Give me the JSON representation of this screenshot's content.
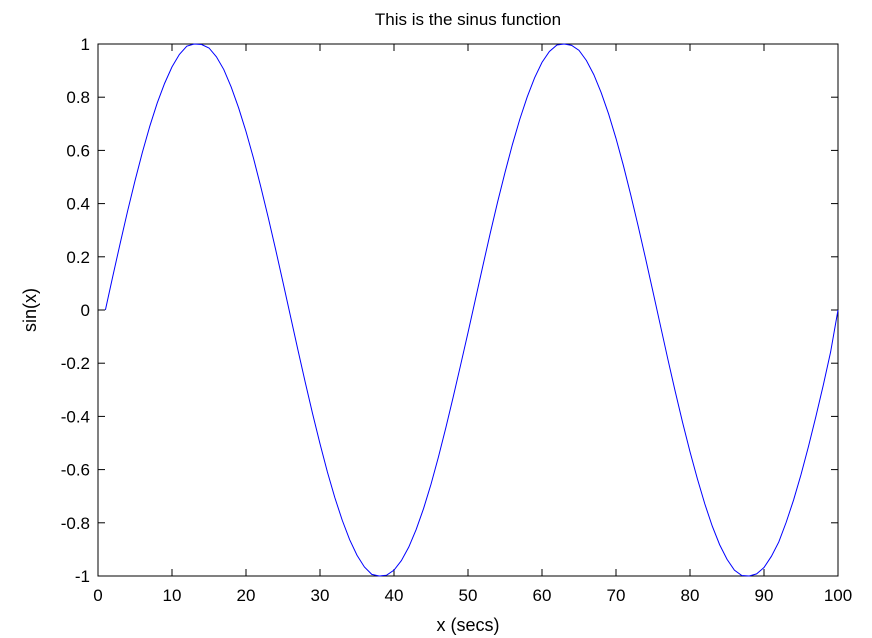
{
  "chart_data": {
    "type": "line",
    "title": "This is the sinus function",
    "xlabel": "x (secs)",
    "ylabel": "sin(x)",
    "xlim": [
      0,
      100
    ],
    "ylim": [
      -1,
      1
    ],
    "grid": false,
    "x_ticks": [
      0,
      10,
      20,
      30,
      40,
      50,
      60,
      70,
      80,
      90,
      100
    ],
    "x_tick_labels": [
      "0",
      "10",
      "20",
      "30",
      "40",
      "50",
      "60",
      "70",
      "80",
      "90",
      "100"
    ],
    "y_ticks": [
      -1,
      -0.8,
      -0.6,
      -0.4,
      -0.2,
      0,
      0.2,
      0.4,
      0.6,
      0.8,
      1
    ],
    "y_tick_labels": [
      "-1",
      "-0.8",
      "-0.6",
      "-0.4",
      "-0.2",
      "0",
      "0.2",
      "0.4",
      "0.6",
      "0.8",
      "1"
    ],
    "series": [
      {
        "color": "#0000ff",
        "x": [
          1,
          2,
          3,
          4,
          5,
          6,
          7,
          8,
          9,
          10,
          11,
          12,
          13,
          14,
          15,
          16,
          17,
          18,
          19,
          20,
          21,
          22,
          23,
          24,
          25,
          26,
          27,
          28,
          29,
          30,
          31,
          32,
          33,
          34,
          35,
          36,
          37,
          38,
          39,
          40,
          41,
          42,
          43,
          44,
          45,
          46,
          47,
          48,
          49,
          50,
          51,
          52,
          53,
          54,
          55,
          56,
          57,
          58,
          59,
          60,
          61,
          62,
          63,
          64,
          65,
          66,
          67,
          68,
          69,
          70,
          71,
          72,
          73,
          74,
          75,
          76,
          77,
          78,
          79,
          80,
          81,
          82,
          83,
          84,
          85,
          86,
          87,
          88,
          89,
          90,
          91,
          92,
          93,
          94,
          95,
          96,
          97,
          98,
          99,
          100
        ],
        "y": [
          0,
          0.127,
          0.251,
          0.372,
          0.486,
          0.593,
          0.691,
          0.778,
          0.852,
          0.914,
          0.961,
          0.992,
          1.0,
          0.998,
          0.985,
          0.952,
          0.904,
          0.838,
          0.76,
          0.671,
          0.572,
          0.463,
          0.348,
          0.228,
          0.104,
          -0.022,
          -0.148,
          -0.271,
          -0.39,
          -0.503,
          -0.609,
          -0.705,
          -0.79,
          -0.863,
          -0.922,
          -0.966,
          -0.994,
          -1.0,
          -0.997,
          -0.978,
          -0.942,
          -0.891,
          -0.825,
          -0.746,
          -0.655,
          -0.553,
          -0.443,
          -0.327,
          -0.207,
          -0.085,
          0.04,
          0.165,
          0.288,
          0.406,
          0.517,
          0.622,
          0.717,
          0.801,
          0.873,
          0.931,
          0.972,
          0.996,
          1.0,
          0.995,
          0.976,
          0.938,
          0.885,
          0.817,
          0.737,
          0.645,
          0.543,
          0.432,
          0.315,
          0.193,
          0.068,
          -0.058,
          -0.184,
          -0.306,
          -0.423,
          -0.533,
          -0.635,
          -0.729,
          -0.812,
          -0.882,
          -0.937,
          -0.978,
          -0.998,
          -1.0,
          -0.992,
          -0.968,
          -0.926,
          -0.872,
          -0.798,
          -0.714,
          -0.619,
          -0.514,
          -0.402,
          -0.284,
          -0.158,
          0
        ]
      }
    ]
  }
}
